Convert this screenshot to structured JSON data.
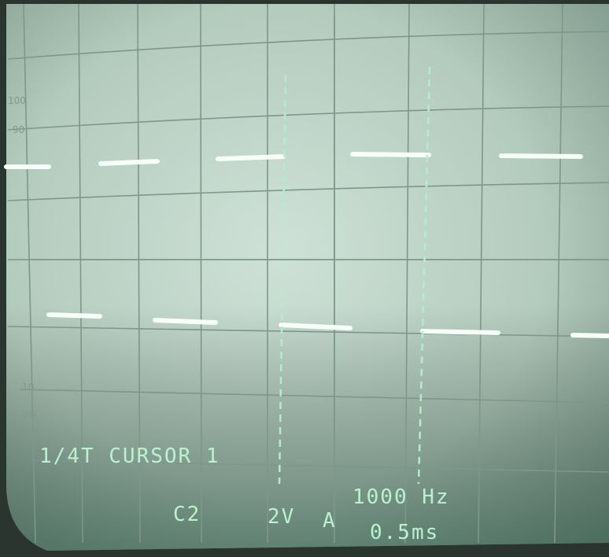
{
  "graticule_labels": [
    "100",
    "90",
    "10",
    "0%"
  ],
  "readout": {
    "mode": "1/4T CURSOR 1",
    "frequency": "1000 Hz",
    "channel": "C2",
    "volts": "2V",
    "trigger": "A",
    "timebase": "0.5ms"
  }
}
